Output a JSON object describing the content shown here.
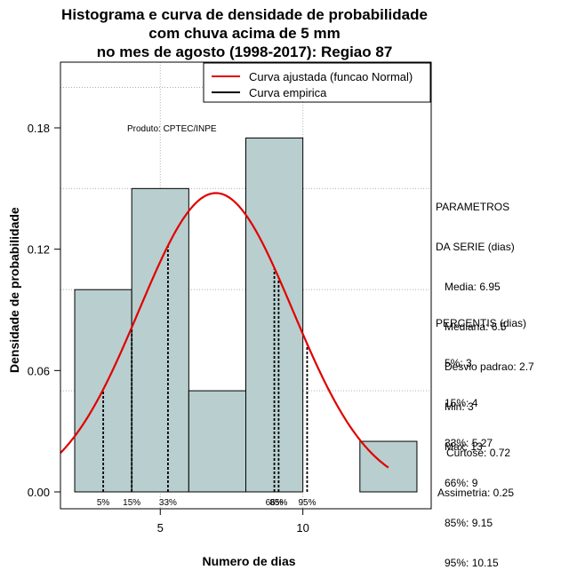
{
  "title_lines": [
    "Histograma e curva de densidade de probabilidade",
    "com chuva acima de 5 mm",
    "no mes de agosto (1998-2017): Regiao 87"
  ],
  "chart_data": {
    "type": "bar",
    "xlabel": "Numero de dias",
    "ylabel": "Densidade de probabilidade",
    "xlim": [
      1.5,
      14.5
    ],
    "ylim": [
      0,
      0.21
    ],
    "x_ticks": [
      5,
      10
    ],
    "y_ticks": [
      0.0,
      0.06,
      0.12,
      0.18
    ],
    "y_tick_labels": [
      "0.00",
      "0.06",
      "0.12",
      "0.18"
    ],
    "grid": true,
    "bins": [
      {
        "from": 2,
        "to": 4,
        "density": 0.1
      },
      {
        "from": 4,
        "to": 6,
        "density": 0.15
      },
      {
        "from": 6,
        "to": 8,
        "density": 0.05
      },
      {
        "from": 8,
        "to": 10,
        "density": 0.175
      },
      {
        "from": 10,
        "to": 12,
        "density": 0.0
      },
      {
        "from": 12,
        "to": 14,
        "density": 0.025
      }
    ],
    "normal_curve": {
      "mean": 6.95,
      "sd": 2.7,
      "x_from": 1.5,
      "x_to": 13
    },
    "percentile_lines": [
      {
        "label": "5%",
        "x": 3
      },
      {
        "label": "15%",
        "x": 4
      },
      {
        "label": "33%",
        "x": 5.27
      },
      {
        "label": "66%",
        "x": 9
      },
      {
        "label": "85%",
        "x": 9.15
      },
      {
        "label": "95%",
        "x": 10.15
      }
    ],
    "legend": {
      "position": "top-right",
      "entries": [
        {
          "label": "Curva ajustada (funcao Normal)",
          "color": "#e00000"
        },
        {
          "label": "Curva empirica",
          "color": "#000000"
        }
      ]
    },
    "annotation": "Produto: CPTEC/INPE"
  },
  "colors": {
    "bar_fill": "#b9cece",
    "curve": "#e00000"
  },
  "side_panel": {
    "parametros": [
      "PARAMETROS",
      "DA SERIE (dias)",
      "   Media: 6.95",
      "   Mediana: 6.5",
      "   Desvio padrao: 2.7",
      "   Min: 3",
      "   Max: 13"
    ],
    "percentis": [
      "PERCENTIS (dias)",
      "   5%: 3",
      "   15%: 4",
      "   33%: 5.27",
      "   66%: 9",
      "   85%: 9.15",
      "   95%: 10.15"
    ],
    "stats": [
      "   Curtose: 0.72",
      "Assimetria: 0.25"
    ]
  }
}
